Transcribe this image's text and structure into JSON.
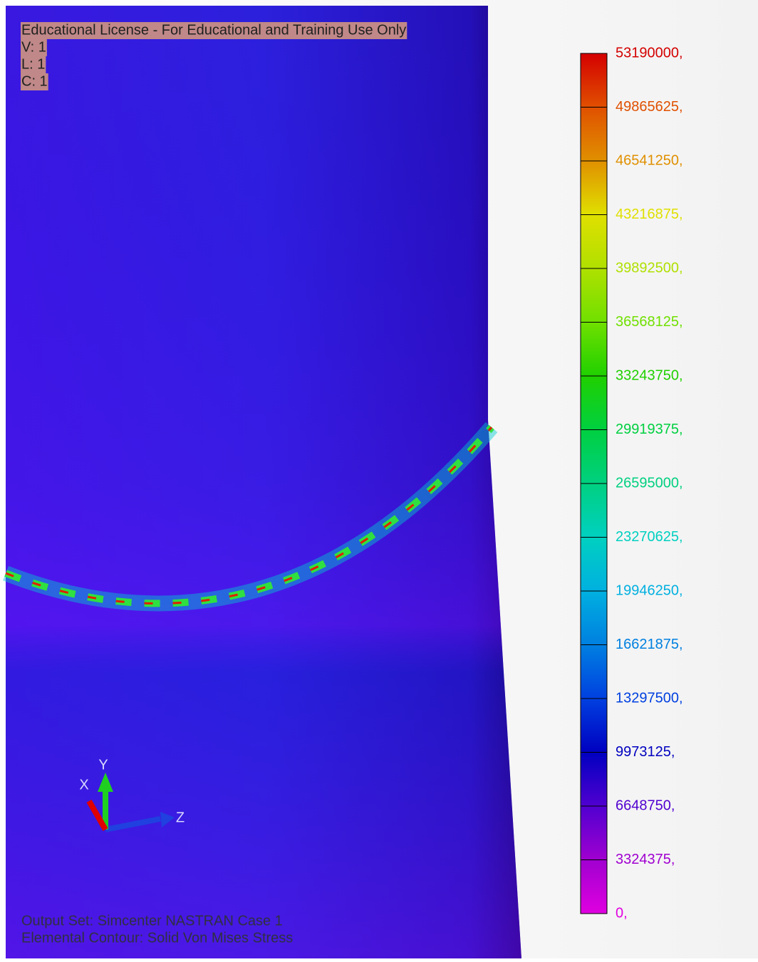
{
  "header": {
    "lines": [
      "Educational License - For Educational and Training Use Only",
      "V: 1",
      "L: 1",
      "C: 1"
    ]
  },
  "legend": {
    "entries": [
      {
        "label": "53190000,",
        "color": "#d40000"
      },
      {
        "label": "49865625,",
        "color": "#e05000"
      },
      {
        "label": "46541250,",
        "color": "#e09000"
      },
      {
        "label": "43216875,",
        "color": "#e0e000"
      },
      {
        "label": "39892500,",
        "color": "#b0e000"
      },
      {
        "label": "36568125,",
        "color": "#70e000"
      },
      {
        "label": "33243750,",
        "color": "#20d000"
      },
      {
        "label": "29919375,",
        "color": "#00d040"
      },
      {
        "label": "26595000,",
        "color": "#00d080"
      },
      {
        "label": "23270625,",
        "color": "#00d0c0"
      },
      {
        "label": "19946250,",
        "color": "#00b0e0"
      },
      {
        "label": "16621875,",
        "color": "#0080e0"
      },
      {
        "label": "13297500,",
        "color": "#0040e0"
      },
      {
        "label": "9973125,",
        "color": "#0000c0"
      },
      {
        "label": "6648750,",
        "color": "#5000d0"
      },
      {
        "label": "3324375,",
        "color": "#a000d0"
      },
      {
        "label": "0,",
        "color": "#e000e0"
      }
    ]
  },
  "triad": {
    "x": "X",
    "y": "Y",
    "z": "Z"
  },
  "footer": {
    "lines": [
      "Output Set: Simcenter NASTRAN Case 1",
      "Elemental Contour: Solid Von Mises Stress"
    ]
  }
}
